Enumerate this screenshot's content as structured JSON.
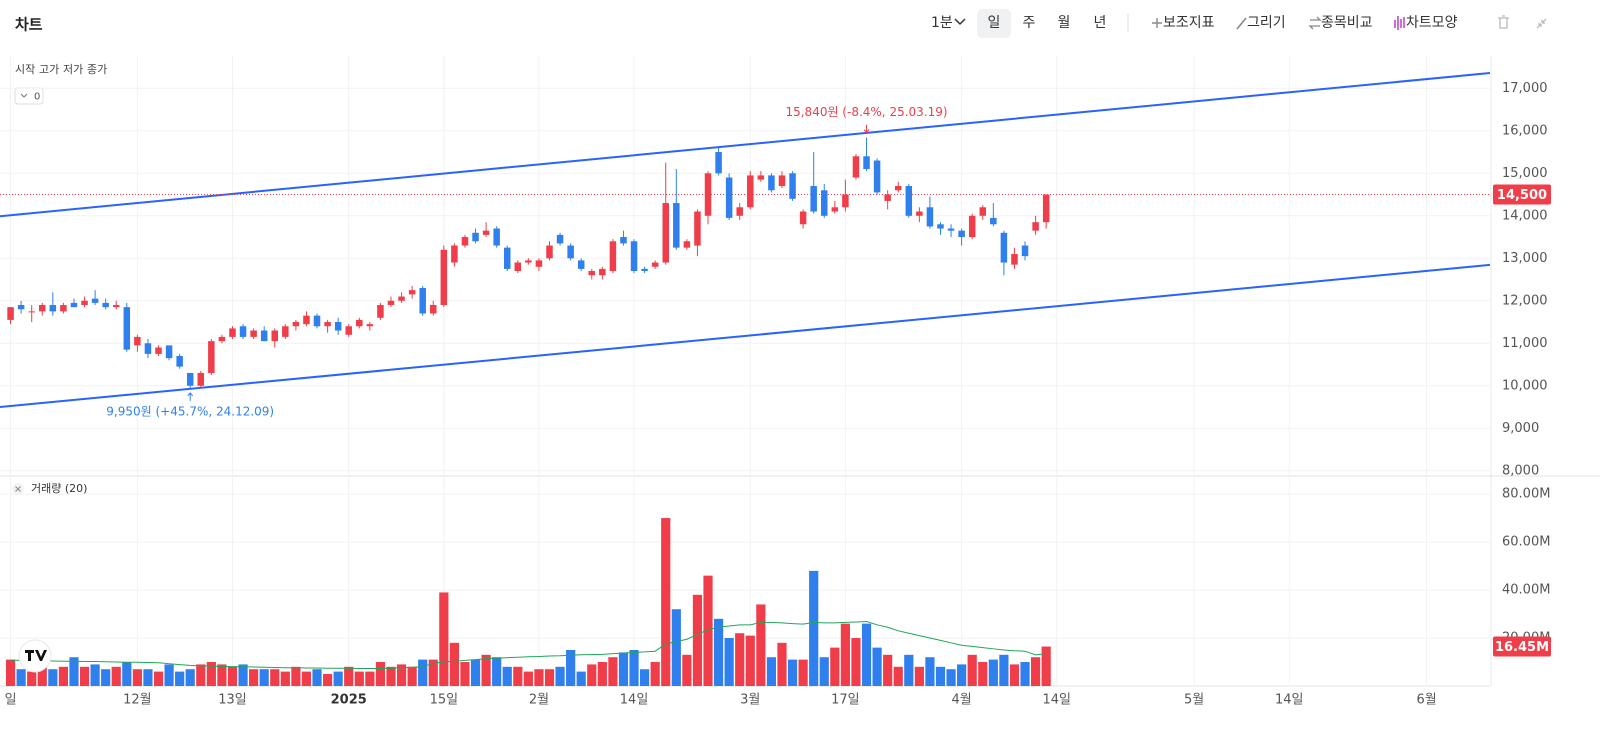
{
  "header": {
    "title": "차트",
    "interval": "1분",
    "periods": [
      "일",
      "주",
      "월",
      "년"
    ],
    "tools": [
      "보조지표",
      "그리기",
      "종목비교",
      "차트모양"
    ]
  },
  "chart_data": {
    "type": "candlestick",
    "ohlc_labels": [
      "시작",
      "고가",
      "저가",
      "종가"
    ],
    "indicator_count": 0,
    "volume_title": "거래량 (20)",
    "up_color": "#ef3e4a",
    "down_color": "#2f80ed",
    "ma_color": "#22a55a",
    "trendline_color": "#2962ff",
    "grid": true,
    "xlim": [
      -1,
      140
    ],
    "xticks": [
      {
        "value": 0,
        "label": "일"
      },
      {
        "value": 12,
        "label": "12월"
      },
      {
        "value": 21,
        "label": "13일"
      },
      {
        "value": 32,
        "label": "2025"
      },
      {
        "value": 41,
        "label": "15일"
      },
      {
        "value": 50,
        "label": "2월"
      },
      {
        "value": 59,
        "label": "14일"
      },
      {
        "value": 70,
        "label": "3월"
      },
      {
        "value": 79,
        "label": "17일"
      },
      {
        "value": 90,
        "label": "4월"
      },
      {
        "value": 99,
        "label": "14일"
      },
      {
        "value": 112,
        "label": "5월"
      },
      {
        "value": 121,
        "label": "14일"
      },
      {
        "value": 134,
        "label": "6월"
      }
    ],
    "ylim": [
      7900,
      17760
    ],
    "yticks": [
      {
        "value": 8000,
        "label": "8,000"
      },
      {
        "value": 9000,
        "label": "9,000"
      },
      {
        "value": 10000,
        "label": "10,000"
      },
      {
        "value": 11000,
        "label": "11,000"
      },
      {
        "value": 12000,
        "label": "12,000"
      },
      {
        "value": 13000,
        "label": "13,000"
      },
      {
        "value": 14000,
        "label": "14,000"
      },
      {
        "value": 15000,
        "label": "15,000"
      },
      {
        "value": 16000,
        "label": "16,000"
      },
      {
        "value": 17000,
        "label": "17,000"
      }
    ],
    "vlim": [
      0,
      86.7
    ],
    "vticks": [
      {
        "value": 20,
        "label": "20.00M"
      },
      {
        "value": 40,
        "label": "40.00M"
      },
      {
        "value": 60,
        "label": "60.00M"
      },
      {
        "value": 80,
        "label": "80.00M"
      }
    ],
    "last_price": {
      "value": 14500,
      "label": "14,500"
    },
    "last_volume": {
      "value": 16.45,
      "label": "16.45M"
    },
    "annotations": [
      {
        "text": "15,840원 (-8.4%, 25.03.19)"
      },
      {
        "text": "9,950원 (+45.7%, 24.12.09)"
      }
    ],
    "trendlines": [
      {
        "x": [
          -1,
          140
        ],
        "y": [
          13990,
          17360
        ]
      },
      {
        "x": [
          -1,
          140
        ],
        "y": [
          9500,
          12845
        ]
      }
    ],
    "candles": [
      {
        "o": 11550,
        "h": 11850,
        "l": 11450,
        "c": 11850,
        "v": 11
      },
      {
        "o": 11900,
        "h": 12000,
        "l": 11700,
        "c": 11800,
        "v": 7
      },
      {
        "o": 11750,
        "h": 11900,
        "l": 11500,
        "c": 11750,
        "v": 6
      },
      {
        "o": 11750,
        "h": 11950,
        "l": 11650,
        "c": 11900,
        "v": 8
      },
      {
        "o": 11900,
        "h": 12200,
        "l": 11650,
        "c": 11750,
        "v": 7
      },
      {
        "o": 11750,
        "h": 11950,
        "l": 11700,
        "c": 11900,
        "v": 8
      },
      {
        "o": 11950,
        "h": 12050,
        "l": 11850,
        "c": 11850,
        "v": 12
      },
      {
        "o": 11900,
        "h": 12100,
        "l": 11850,
        "c": 12000,
        "v": 8
      },
      {
        "o": 12050,
        "h": 12250,
        "l": 11900,
        "c": 11950,
        "v": 9
      },
      {
        "o": 11950,
        "h": 12050,
        "l": 11800,
        "c": 11850,
        "v": 7
      },
      {
        "o": 11850,
        "h": 12000,
        "l": 11800,
        "c": 11900,
        "v": 8
      },
      {
        "o": 11850,
        "h": 11950,
        "l": 10800,
        "c": 10850,
        "v": 10
      },
      {
        "o": 10950,
        "h": 11200,
        "l": 10800,
        "c": 11150,
        "v": 7
      },
      {
        "o": 11000,
        "h": 11100,
        "l": 10650,
        "c": 10750,
        "v": 7
      },
      {
        "o": 10750,
        "h": 10950,
        "l": 10700,
        "c": 10900,
        "v": 6
      },
      {
        "o": 10950,
        "h": 10950,
        "l": 10600,
        "c": 10650,
        "v": 9
      },
      {
        "o": 10700,
        "h": 10750,
        "l": 10400,
        "c": 10450,
        "v": 6
      },
      {
        "o": 10300,
        "h": 10300,
        "l": 9950,
        "c": 10000,
        "v": 7
      },
      {
        "o": 10000,
        "h": 10350,
        "l": 9950,
        "c": 10300,
        "v": 9
      },
      {
        "o": 10300,
        "h": 11100,
        "l": 10250,
        "c": 11050,
        "v": 10
      },
      {
        "o": 11050,
        "h": 11200,
        "l": 11000,
        "c": 11150,
        "v": 9
      },
      {
        "o": 11150,
        "h": 11400,
        "l": 11100,
        "c": 11350,
        "v": 8
      },
      {
        "o": 11400,
        "h": 11450,
        "l": 11100,
        "c": 11150,
        "v": 9
      },
      {
        "o": 11150,
        "h": 11350,
        "l": 11100,
        "c": 11300,
        "v": 7
      },
      {
        "o": 11300,
        "h": 11400,
        "l": 11050,
        "c": 11050,
        "v": 7
      },
      {
        "o": 11050,
        "h": 11350,
        "l": 10900,
        "c": 11300,
        "v": 7
      },
      {
        "o": 11150,
        "h": 11450,
        "l": 11100,
        "c": 11400,
        "v": 6
      },
      {
        "o": 11400,
        "h": 11550,
        "l": 11300,
        "c": 11500,
        "v": 8
      },
      {
        "o": 11450,
        "h": 11750,
        "l": 11400,
        "c": 11650,
        "v": 6
      },
      {
        "o": 11650,
        "h": 11700,
        "l": 11350,
        "c": 11400,
        "v": 7
      },
      {
        "o": 11400,
        "h": 11550,
        "l": 11250,
        "c": 11500,
        "v": 5
      },
      {
        "o": 11500,
        "h": 11600,
        "l": 11200,
        "c": 11300,
        "v": 6
      },
      {
        "o": 11200,
        "h": 11450,
        "l": 11150,
        "c": 11400,
        "v": 8
      },
      {
        "o": 11400,
        "h": 11600,
        "l": 11350,
        "c": 11550,
        "v": 6
      },
      {
        "o": 11400,
        "h": 11500,
        "l": 11300,
        "c": 11450,
        "v": 6
      },
      {
        "o": 11600,
        "h": 11950,
        "l": 11550,
        "c": 11900,
        "v": 10
      },
      {
        "o": 11900,
        "h": 12100,
        "l": 11850,
        "c": 12000,
        "v": 8
      },
      {
        "o": 12000,
        "h": 12200,
        "l": 11950,
        "c": 12100,
        "v": 9
      },
      {
        "o": 12150,
        "h": 12350,
        "l": 12050,
        "c": 12250,
        "v": 8
      },
      {
        "o": 12300,
        "h": 12350,
        "l": 11650,
        "c": 11700,
        "v": 11
      },
      {
        "o": 11700,
        "h": 12000,
        "l": 11650,
        "c": 11900,
        "v": 11
      },
      {
        "o": 11900,
        "h": 13300,
        "l": 11850,
        "c": 13200,
        "v": 39
      },
      {
        "o": 12900,
        "h": 13350,
        "l": 12800,
        "c": 13300,
        "v": 18
      },
      {
        "o": 13300,
        "h": 13550,
        "l": 13250,
        "c": 13500,
        "v": 10
      },
      {
        "o": 13600,
        "h": 13700,
        "l": 13350,
        "c": 13400,
        "v": 11
      },
      {
        "o": 13550,
        "h": 13850,
        "l": 13500,
        "c": 13650,
        "v": 13
      },
      {
        "o": 13700,
        "h": 13750,
        "l": 13250,
        "c": 13300,
        "v": 12
      },
      {
        "o": 13250,
        "h": 13300,
        "l": 12700,
        "c": 12750,
        "v": 8
      },
      {
        "o": 12700,
        "h": 12950,
        "l": 12650,
        "c": 12900,
        "v": 8
      },
      {
        "o": 12900,
        "h": 13000,
        "l": 12850,
        "c": 12950,
        "v": 6
      },
      {
        "o": 12800,
        "h": 13000,
        "l": 12700,
        "c": 12950,
        "v": 7
      },
      {
        "o": 13000,
        "h": 13400,
        "l": 12950,
        "c": 13300,
        "v": 7
      },
      {
        "o": 13550,
        "h": 13600,
        "l": 13300,
        "c": 13350,
        "v": 8
      },
      {
        "o": 13300,
        "h": 13350,
        "l": 12950,
        "c": 13000,
        "v": 15
      },
      {
        "o": 12950,
        "h": 13000,
        "l": 12700,
        "c": 12750,
        "v": 6
      },
      {
        "o": 12600,
        "h": 12750,
        "l": 12500,
        "c": 12700,
        "v": 9
      },
      {
        "o": 12600,
        "h": 12800,
        "l": 12500,
        "c": 12750,
        "v": 10
      },
      {
        "o": 12700,
        "h": 13450,
        "l": 12650,
        "c": 13400,
        "v": 12
      },
      {
        "o": 13500,
        "h": 13650,
        "l": 13300,
        "c": 13350,
        "v": 14
      },
      {
        "o": 13400,
        "h": 13450,
        "l": 12650,
        "c": 12700,
        "v": 15
      },
      {
        "o": 12750,
        "h": 12800,
        "l": 12650,
        "c": 12700,
        "v": 7
      },
      {
        "o": 12800,
        "h": 12950,
        "l": 12750,
        "c": 12900,
        "v": 10
      },
      {
        "o": 12900,
        "h": 15250,
        "l": 12850,
        "c": 14300,
        "v": 70
      },
      {
        "o": 14300,
        "h": 15100,
        "l": 13200,
        "c": 13250,
        "v": 32
      },
      {
        "o": 13250,
        "h": 13450,
        "l": 13200,
        "c": 13400,
        "v": 13
      },
      {
        "o": 13300,
        "h": 14150,
        "l": 13050,
        "c": 14100,
        "v": 38
      },
      {
        "o": 14000,
        "h": 15050,
        "l": 13800,
        "c": 15000,
        "v": 46
      },
      {
        "o": 15500,
        "h": 15600,
        "l": 14950,
        "c": 15000,
        "v": 28
      },
      {
        "o": 14900,
        "h": 15000,
        "l": 13900,
        "c": 13950,
        "v": 20
      },
      {
        "o": 14000,
        "h": 14300,
        "l": 13900,
        "c": 14200,
        "v": 22
      },
      {
        "o": 14200,
        "h": 15050,
        "l": 14150,
        "c": 14950,
        "v": 21
      },
      {
        "o": 14850,
        "h": 15050,
        "l": 14800,
        "c": 14950,
        "v": 34
      },
      {
        "o": 14950,
        "h": 15000,
        "l": 14550,
        "c": 14600,
        "v": 12
      },
      {
        "o": 14700,
        "h": 15050,
        "l": 14650,
        "c": 14950,
        "v": 18
      },
      {
        "o": 15000,
        "h": 15050,
        "l": 14350,
        "c": 14400,
        "v": 11
      },
      {
        "o": 13800,
        "h": 14150,
        "l": 13700,
        "c": 14100,
        "v": 11
      },
      {
        "o": 14700,
        "h": 15500,
        "l": 14050,
        "c": 14100,
        "v": 48
      },
      {
        "o": 14600,
        "h": 14750,
        "l": 13950,
        "c": 14000,
        "v": 12
      },
      {
        "o": 14100,
        "h": 14350,
        "l": 14050,
        "c": 14200,
        "v": 16
      },
      {
        "o": 14200,
        "h": 14850,
        "l": 14100,
        "c": 14500,
        "v": 26
      },
      {
        "o": 14900,
        "h": 15450,
        "l": 14850,
        "c": 15400,
        "v": 20
      },
      {
        "o": 15400,
        "h": 15840,
        "l": 15050,
        "c": 15100,
        "v": 26
      },
      {
        "o": 15300,
        "h": 15350,
        "l": 14500,
        "c": 14550,
        "v": 16
      },
      {
        "o": 14350,
        "h": 14600,
        "l": 14150,
        "c": 14500,
        "v": 13
      },
      {
        "o": 14600,
        "h": 14800,
        "l": 14550,
        "c": 14700,
        "v": 8
      },
      {
        "o": 14700,
        "h": 14750,
        "l": 13950,
        "c": 14000,
        "v": 13
      },
      {
        "o": 14000,
        "h": 14200,
        "l": 13850,
        "c": 14100,
        "v": 8
      },
      {
        "o": 14200,
        "h": 14450,
        "l": 13700,
        "c": 13750,
        "v": 12
      },
      {
        "o": 13800,
        "h": 13850,
        "l": 13550,
        "c": 13700,
        "v": 8
      },
      {
        "o": 13700,
        "h": 13800,
        "l": 13500,
        "c": 13650,
        "v": 7
      },
      {
        "o": 13650,
        "h": 13700,
        "l": 13300,
        "c": 13500,
        "v": 9
      },
      {
        "o": 13500,
        "h": 14050,
        "l": 13450,
        "c": 14000,
        "v": 13
      },
      {
        "o": 14000,
        "h": 14250,
        "l": 13900,
        "c": 14200,
        "v": 10
      },
      {
        "o": 13950,
        "h": 14300,
        "l": 13750,
        "c": 13800,
        "v": 11
      },
      {
        "o": 13600,
        "h": 13650,
        "l": 12600,
        "c": 12900,
        "v": 13
      },
      {
        "o": 12850,
        "h": 13250,
        "l": 12750,
        "c": 13100,
        "v": 9
      },
      {
        "o": 13300,
        "h": 13400,
        "l": 12950,
        "c": 13050,
        "v": 10
      },
      {
        "o": 13650,
        "h": 14000,
        "l": 13550,
        "c": 13850,
        "v": 12
      },
      {
        "o": 13850,
        "h": 14500,
        "l": 13700,
        "c": 14500,
        "v": 16.45
      }
    ],
    "volume_ma": [
      10.8,
      10.7,
      10.6,
      10.5,
      10.4,
      10.3,
      10.3,
      10.2,
      10.2,
      10.1,
      10.0,
      9.9,
      9.9,
      9.8,
      9.7,
      9.3,
      8.9,
      8.6,
      8.4,
      8.3,
      8.2,
      8.1,
      8.0,
      7.9,
      7.8,
      7.7,
      7.6,
      7.6,
      7.5,
      7.5,
      7.4,
      7.4,
      7.4,
      7.3,
      7.3,
      7.3,
      7.4,
      7.6,
      7.8,
      8.0,
      9.5,
      10.0,
      10.3,
      10.7,
      11.0,
      11.4,
      11.6,
      11.8,
      12.0,
      12.2,
      12.3,
      12.5,
      12.6,
      12.8,
      13.0,
      13.1,
      13.2,
      13.5,
      13.7,
      14.0,
      14.2,
      14.5,
      17.5,
      18.5,
      19.5,
      21.5,
      23.5,
      24.5,
      25.0,
      25.5,
      25.5,
      26.5,
      26.5,
      26.3,
      26.0,
      25.8,
      26.5,
      26.3,
      26.3,
      26.5,
      26.7,
      26.9,
      25.5,
      24.5,
      23.0,
      22.0,
      21.0,
      20.0,
      19.0,
      18.0,
      17.0,
      16.5,
      16.0,
      15.5,
      15.0,
      14.7,
      14.5,
      13.0,
      13.5
    ]
  }
}
